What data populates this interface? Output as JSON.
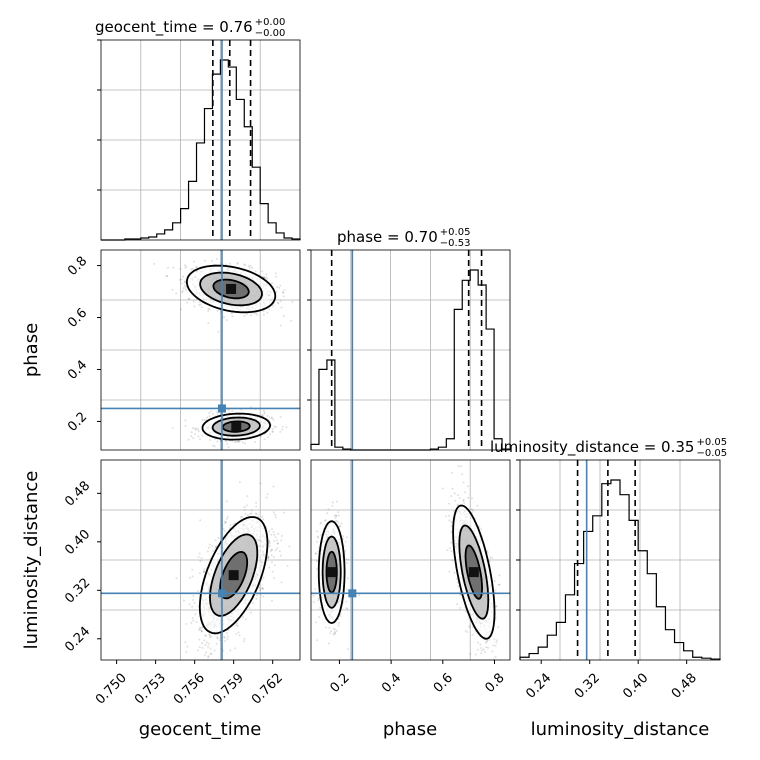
{
  "chart_data": {
    "type": "corner",
    "parameters": [
      "geocent_time",
      "phase",
      "luminosity_distance"
    ],
    "axis_labels": {
      "geocent_time": "geocent_time",
      "phase": "phase",
      "luminosity_distance": "luminosity_distance"
    },
    "ticks": {
      "geocent_time": [
        "0.750",
        "0.753",
        "0.756",
        "0.759",
        "0.762"
      ],
      "phase_x": [
        "0.2",
        "0.4",
        "0.6",
        "0.8"
      ],
      "phase_y": [
        "0.8",
        "0.6",
        "0.4",
        "0.2"
      ],
      "luminosity_distance_x": [
        "0.24",
        "0.32",
        "0.40",
        "0.48"
      ],
      "luminosity_distance_y": [
        "0.48",
        "0.40",
        "0.32",
        "0.24"
      ]
    },
    "ranges": {
      "geocent_time": [
        0.7488,
        0.7641
      ],
      "phase": [
        0.09,
        0.86
      ],
      "luminosity_distance": [
        0.205,
        0.535
      ]
    },
    "titles": [
      {
        "param": "geocent_time",
        "base": "geocent_time = 0.76",
        "plus": "+0.00",
        "minus": "−0.00"
      },
      {
        "param": "phase",
        "base": "phase = 0.70",
        "plus": "+0.05",
        "minus": "−0.53"
      },
      {
        "param": "luminosity_distance",
        "base": "luminosity_distance = 0.35",
        "plus": "+0.05",
        "minus": "−0.05"
      }
    ],
    "injection": {
      "geocent_time": 0.7581,
      "phase": 0.25,
      "luminosity_distance": 0.315
    },
    "quantiles": {
      "geocent_time": [
        0.7574,
        0.7587,
        0.7603
      ],
      "phase": [
        0.17,
        0.7,
        0.75
      ],
      "luminosity_distance": [
        0.3,
        0.35,
        0.395
      ]
    },
    "histograms": {
      "geocent_time": [
        0,
        0,
        0,
        1,
        1,
        2,
        3,
        6,
        10,
        17,
        31,
        58,
        96,
        130,
        164,
        178,
        171,
        139,
        112,
        72,
        36,
        17,
        7,
        2,
        1
      ],
      "phase": [
        6,
        86,
        96,
        3,
        1,
        0,
        0,
        0,
        0,
        0,
        0,
        0,
        0,
        0,
        0,
        1,
        3,
        12,
        150,
        181,
        192,
        176,
        129,
        12,
        1
      ],
      "luminosity_distance": [
        3,
        7,
        14,
        27,
        41,
        71,
        105,
        140,
        157,
        192,
        196,
        180,
        152,
        119,
        94,
        58,
        33,
        19,
        10,
        3,
        2,
        1
      ]
    },
    "grid": true,
    "colors": {
      "injection": "#4682b4",
      "histogram": "#000000",
      "contour": "#000000"
    }
  }
}
